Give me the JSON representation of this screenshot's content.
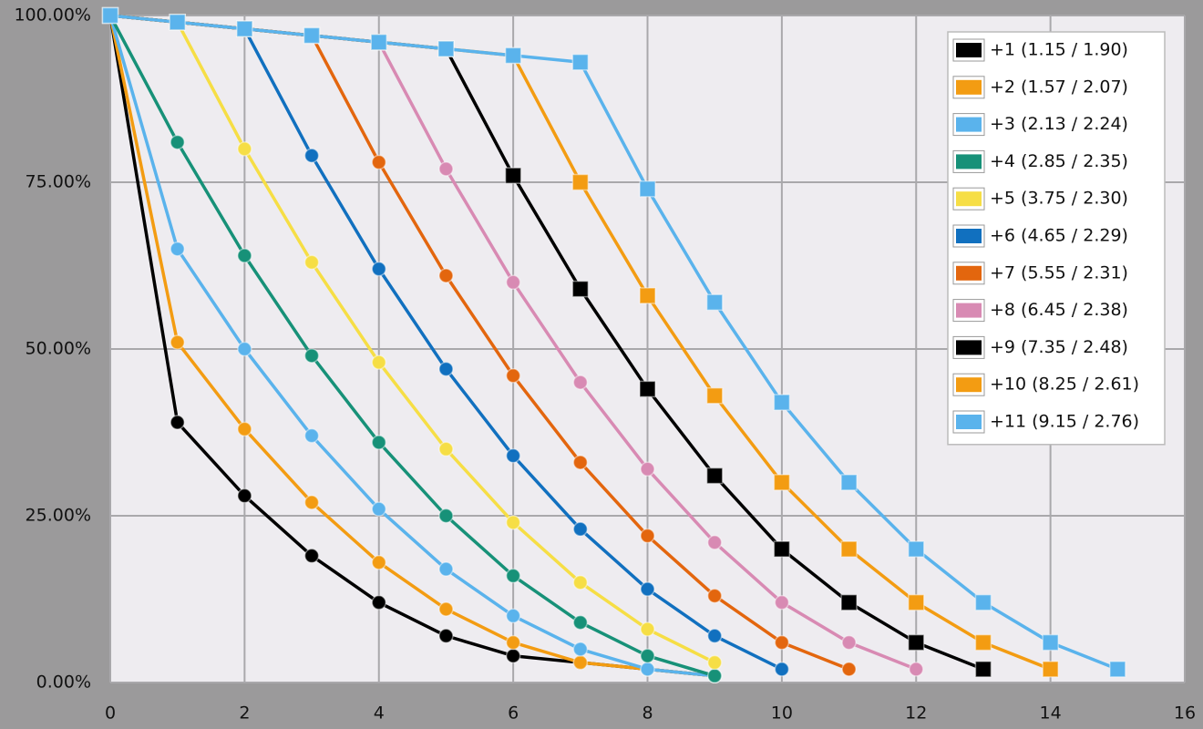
{
  "chart_data": {
    "type": "line",
    "grid": true,
    "legend": "top-right",
    "x": [
      0,
      1,
      2,
      3,
      4,
      5,
      6,
      7,
      8,
      9,
      10,
      11,
      12,
      13,
      14,
      15
    ],
    "xlim": [
      0,
      16
    ],
    "xticks": [
      0,
      2,
      4,
      6,
      8,
      10,
      12,
      14,
      16
    ],
    "ylim": [
      0,
      100
    ],
    "yticks": [
      {
        "value": 0,
        "label": "0.00%"
      },
      {
        "value": 25,
        "label": "25.00%"
      },
      {
        "value": 50,
        "label": "50.00%"
      },
      {
        "value": 75,
        "label": "75.00%"
      },
      {
        "value": 100,
        "label": "100.00%"
      }
    ],
    "series": [
      {
        "name": "+1 (1.15 / 1.90)",
        "color": "#000000",
        "marker": "circle",
        "values": [
          100,
          39,
          28,
          19,
          12,
          7,
          4,
          3,
          2,
          1,
          null,
          null,
          null,
          null,
          null,
          null
        ]
      },
      {
        "name": "+2 (1.57 / 2.07)",
        "color": "#f39c12",
        "marker": "circle",
        "values": [
          100,
          51,
          38,
          27,
          18,
          11,
          6,
          3,
          2,
          1,
          null,
          null,
          null,
          null,
          null,
          null
        ]
      },
      {
        "name": "+3 (2.13 / 2.24)",
        "color": "#5ab3ec",
        "marker": "circle",
        "values": [
          100,
          65,
          50,
          37,
          26,
          17,
          10,
          5,
          2,
          1,
          null,
          null,
          null,
          null,
          null,
          null
        ]
      },
      {
        "name": "+4 (2.85 / 2.35)",
        "color": "#179178",
        "marker": "circle",
        "values": [
          100,
          81,
          64,
          49,
          36,
          25,
          16,
          9,
          4,
          1,
          null,
          null,
          null,
          null,
          null,
          null
        ]
      },
      {
        "name": "+5 (3.75 / 2.30)",
        "color": "#f6de45",
        "marker": "circle",
        "values": [
          100,
          99,
          80,
          63,
          48,
          35,
          24,
          15,
          8,
          3,
          null,
          null,
          null,
          null,
          null,
          null
        ]
      },
      {
        "name": "+6 (4.65 / 2.29)",
        "color": "#1170bf",
        "marker": "circle",
        "values": [
          100,
          99,
          98,
          79,
          62,
          47,
          34,
          23,
          14,
          7,
          2,
          null,
          null,
          null,
          null,
          null
        ]
      },
      {
        "name": "+7 (5.55 / 2.31)",
        "color": "#e3660e",
        "marker": "circle",
        "values": [
          100,
          99,
          98,
          97,
          78,
          61,
          46,
          33,
          22,
          13,
          6,
          2,
          null,
          null,
          null,
          null
        ]
      },
      {
        "name": "+8 (6.45 / 2.38)",
        "color": "#d88ab3",
        "marker": "circle",
        "values": [
          100,
          99,
          98,
          97,
          96,
          77,
          60,
          45,
          32,
          21,
          12,
          6,
          2,
          null,
          null,
          null
        ]
      },
      {
        "name": "+9 (7.35 / 2.48)",
        "color": "#000000",
        "marker": "square",
        "values": [
          100,
          99,
          98,
          97,
          96,
          95,
          76,
          59,
          44,
          31,
          20,
          12,
          6,
          2,
          null,
          null
        ]
      },
      {
        "name": "+10 (8.25 / 2.61)",
        "color": "#f39c12",
        "marker": "square",
        "values": [
          100,
          99,
          98,
          97,
          96,
          95,
          94,
          75,
          58,
          43,
          30,
          20,
          12,
          6,
          2,
          null
        ]
      },
      {
        "name": "+11 (9.15 / 2.76)",
        "color": "#5ab3ec",
        "marker": "square",
        "values": [
          100,
          99,
          98,
          97,
          96,
          95,
          94,
          93,
          74,
          57,
          42,
          30,
          20,
          12,
          6,
          2
        ]
      }
    ]
  }
}
